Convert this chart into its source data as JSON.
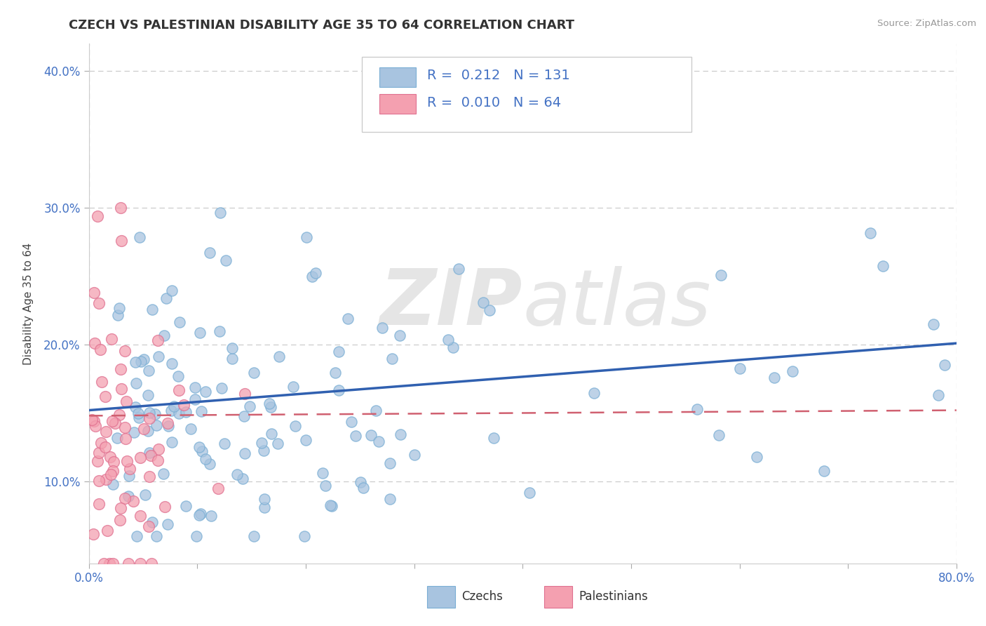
{
  "title": "CZECH VS PALESTINIAN DISABILITY AGE 35 TO 64 CORRELATION CHART",
  "source_text": "Source: ZipAtlas.com",
  "ylabel": "Disability Age 35 to 64",
  "xlim": [
    0.0,
    0.8
  ],
  "ylim": [
    0.04,
    0.42
  ],
  "xticks": [
    0.0,
    0.1,
    0.2,
    0.3,
    0.4,
    0.5,
    0.6,
    0.7,
    0.8
  ],
  "yticks": [
    0.1,
    0.2,
    0.3,
    0.4
  ],
  "xticklabels": [
    "0.0%",
    "",
    "",
    "",
    "",
    "",
    "",
    "",
    "80.0%"
  ],
  "yticklabels": [
    "10.0%",
    "20.0%",
    "30.0%",
    "40.0%"
  ],
  "czech_color": "#a8c4e0",
  "czech_edge_color": "#7aaed4",
  "palestinian_color": "#f4a0b0",
  "palestinian_edge_color": "#e07090",
  "czech_R": 0.212,
  "czech_N": 131,
  "palestinian_R": 0.01,
  "palestinian_N": 64,
  "czech_line_color": "#3060b0",
  "palestinian_line_color": "#d06070",
  "background_color": "#ffffff",
  "grid_color": "#cccccc",
  "watermark_zip": "ZIP",
  "watermark_atlas": "atlas",
  "watermark_color": "#d8d8d8",
  "title_fontsize": 13,
  "axis_label_fontsize": 11,
  "tick_fontsize": 12,
  "legend_fontsize": 14,
  "czech_line_start_y": 0.152,
  "czech_line_end_y": 0.201,
  "pal_line_start_y": 0.148,
  "pal_line_end_y": 0.152
}
